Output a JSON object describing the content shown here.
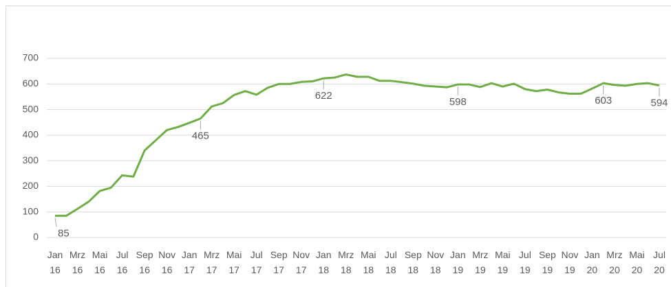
{
  "chart_data": {
    "type": "line",
    "categories": [
      "Jan 16",
      null,
      "Mrz 16",
      null,
      "Mai 16",
      null,
      "Jul 16",
      null,
      "Sep 16",
      null,
      "Nov 16",
      null,
      "Jan 17",
      null,
      "Mrz 17",
      null,
      "Mai 17",
      null,
      "Jul 17",
      null,
      "Sep 17",
      null,
      "Nov 17",
      null,
      "Jan 18",
      null,
      "Mrz 18",
      null,
      "Mai 18",
      null,
      "Jul 18",
      null,
      "Sep 18",
      null,
      "Nov 18",
      null,
      "Jan 19",
      null,
      "Mrz 19",
      null,
      "Mai 19",
      null,
      "Jul 19",
      null,
      "Sep 19",
      null,
      "Nov 19",
      null,
      "Jan 20",
      null,
      "Mrz 20",
      null,
      "Mai 20",
      null,
      "Jul 20"
    ],
    "values": [
      85,
      85,
      112,
      140,
      182,
      195,
      243,
      238,
      340,
      380,
      420,
      432,
      448,
      465,
      512,
      525,
      557,
      572,
      558,
      585,
      600,
      600,
      608,
      610,
      622,
      625,
      637,
      628,
      628,
      612,
      612,
      607,
      601,
      593,
      590,
      587,
      598,
      598,
      588,
      603,
      590,
      601,
      580,
      572,
      578,
      567,
      562,
      562,
      582,
      603,
      596,
      593,
      600,
      603,
      594
    ],
    "labeled_points": [
      0,
      13,
      24,
      36,
      49,
      54
    ],
    "color": "#70ad47",
    "ylim": [
      0,
      700
    ],
    "yticks": [
      0,
      100,
      200,
      300,
      400,
      500,
      600,
      700
    ],
    "grid": true
  }
}
